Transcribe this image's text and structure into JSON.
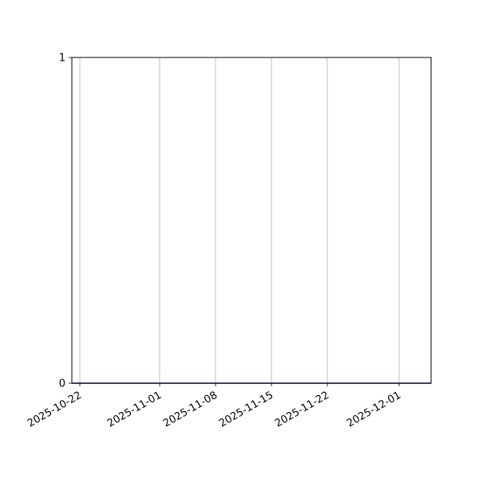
{
  "chart_data": {
    "type": "line",
    "title": "",
    "xlabel": "",
    "ylabel": "",
    "xlim": [
      "2025-10-21",
      "2025-12-05"
    ],
    "ylim": [
      0,
      1
    ],
    "x_ticks": [
      "2025-10-22",
      "2025-11-01",
      "2025-11-08",
      "2025-11-15",
      "2025-11-22",
      "2025-12-01"
    ],
    "y_ticks": [
      "0",
      "1"
    ],
    "grid": "x-only",
    "series": [
      {
        "color": "#00008b",
        "x": [
          "2025-10-21",
          "2025-12-05"
        ],
        "y": [
          0,
          0
        ]
      }
    ]
  }
}
